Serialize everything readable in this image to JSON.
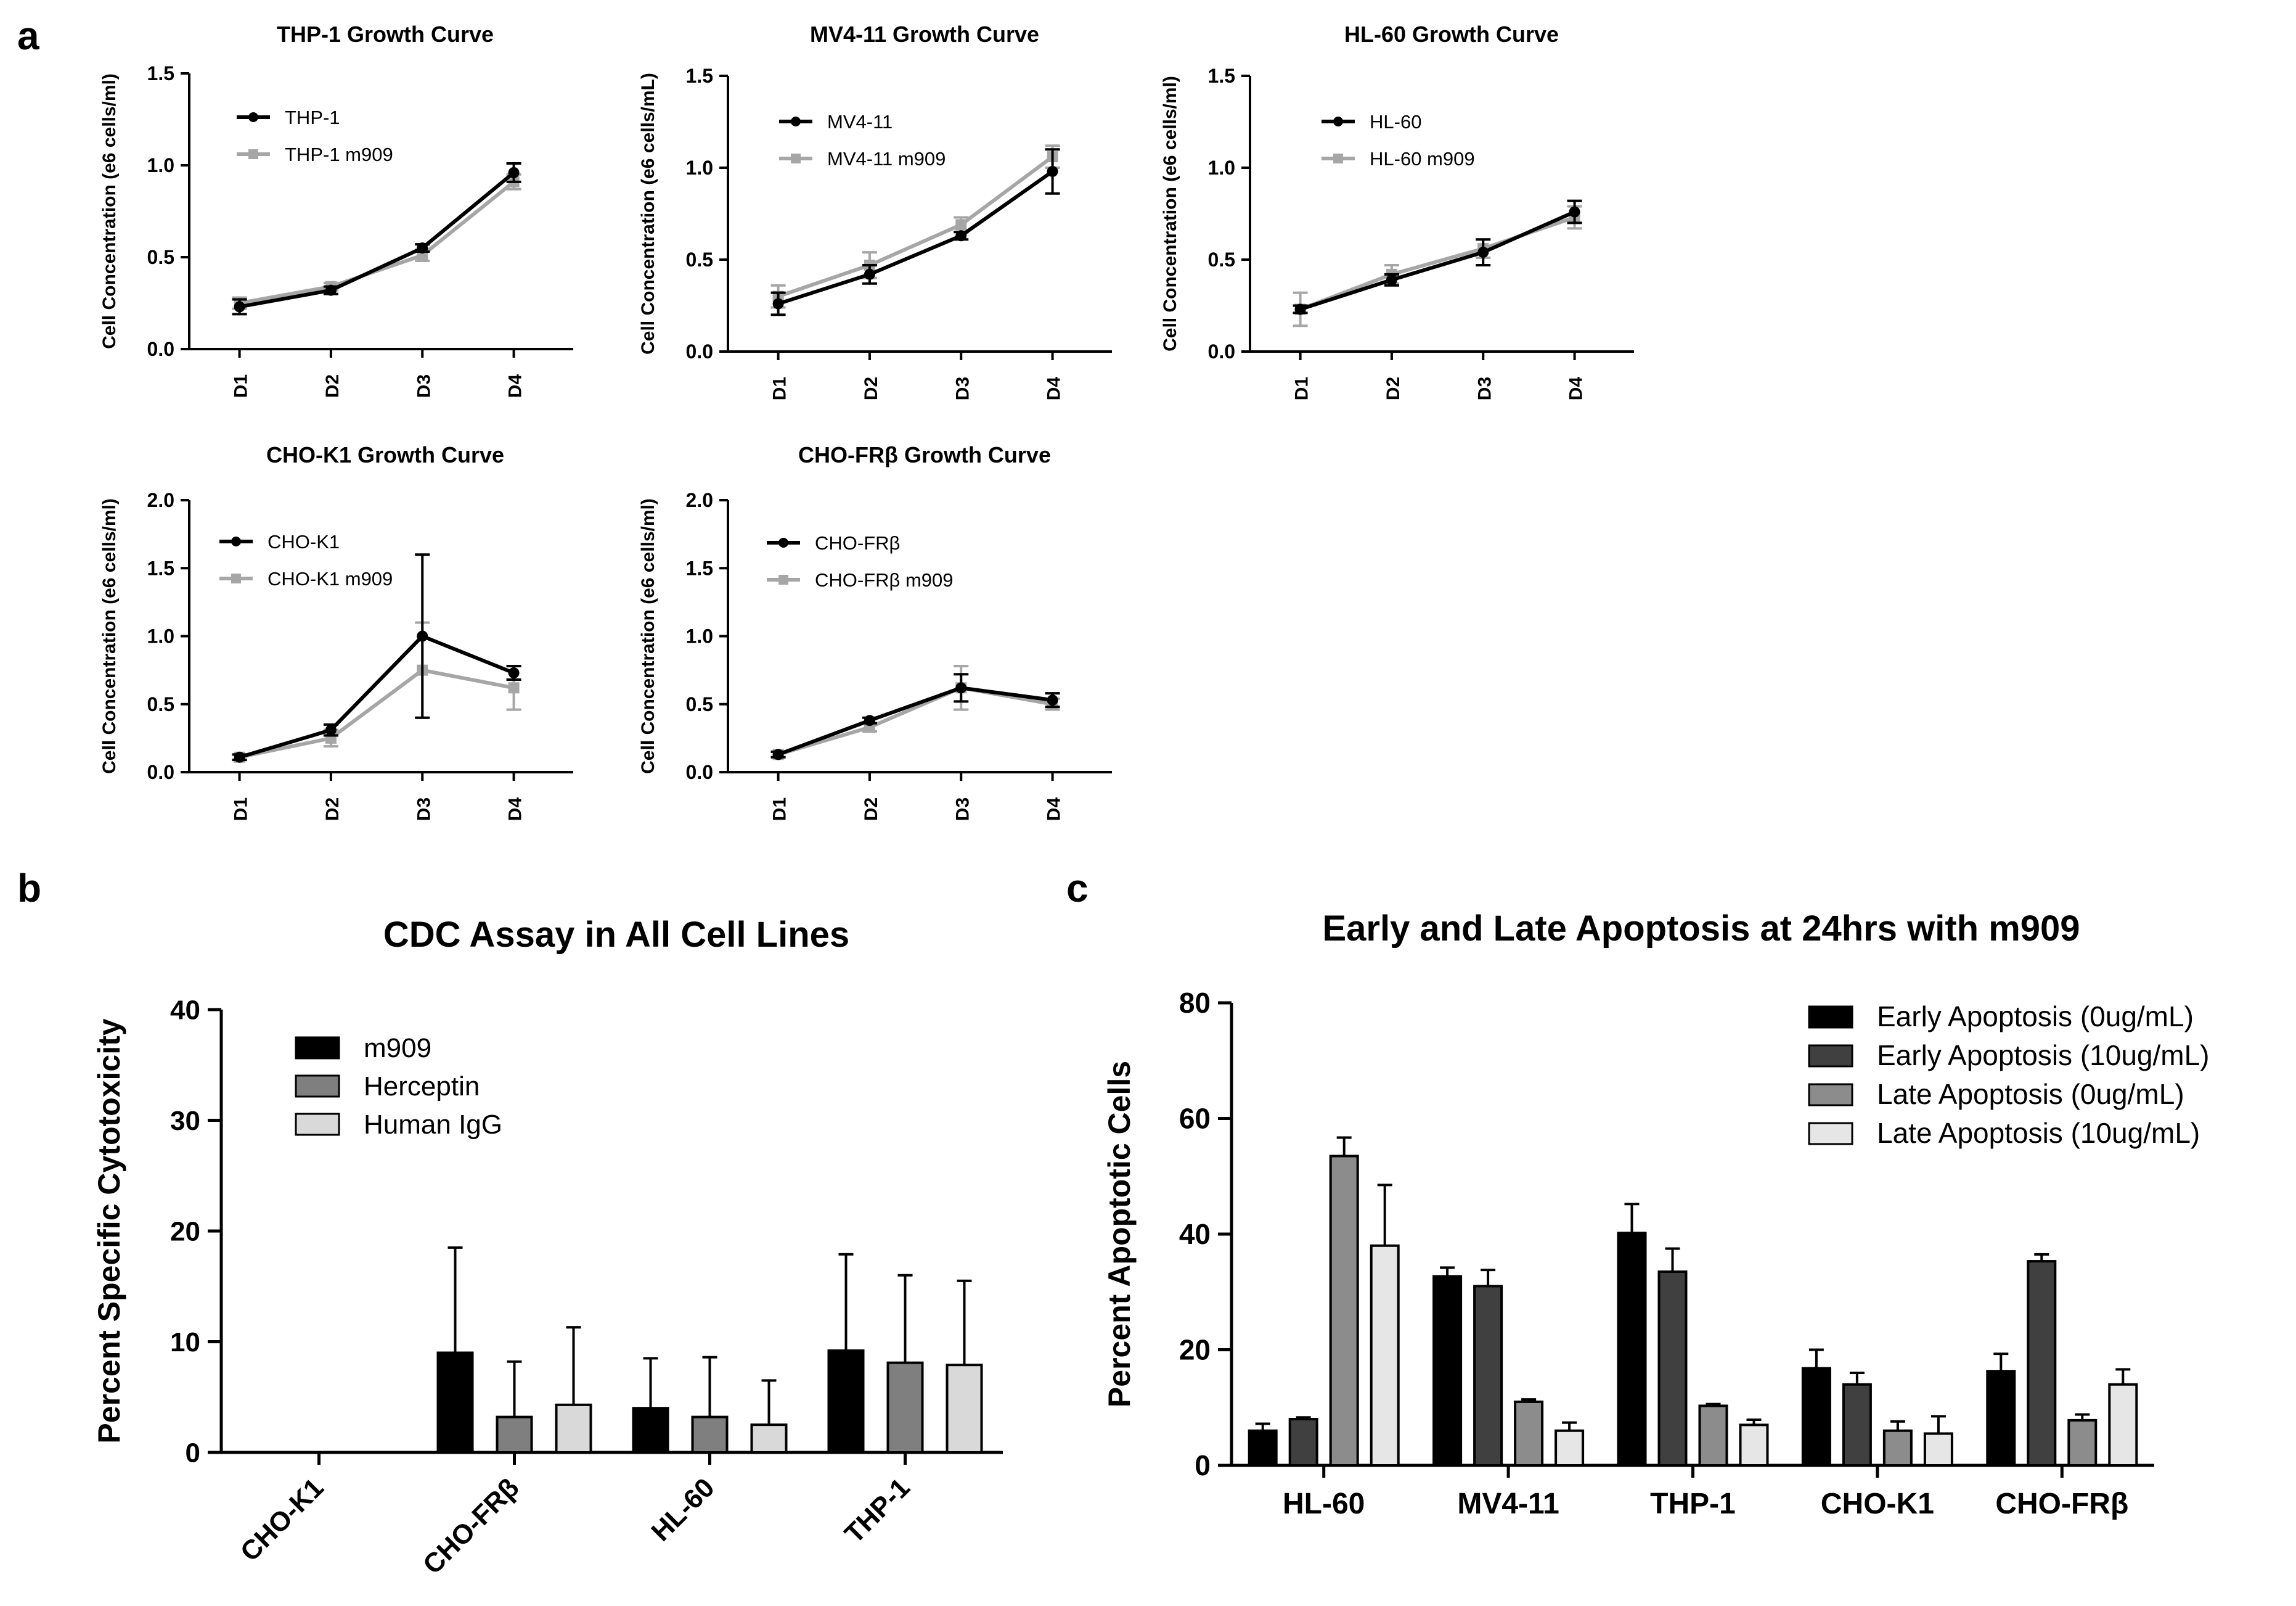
{
  "panel_labels": {
    "a": "a",
    "b": "b",
    "c": "c"
  },
  "colors": {
    "black_series": "#000000",
    "gray_series": "#a6a6a6"
  },
  "chart_data": [
    {
      "type": "line",
      "title": "THP-1 Growth Curve",
      "ylabel": "Cell Concentration (e6 cells/ml)",
      "categories": [
        "D1",
        "D2",
        "D3",
        "D4"
      ],
      "ylim": [
        0,
        1.5
      ],
      "yticks": [
        "0.0",
        "0.5",
        "1.0",
        "1.5"
      ],
      "legend_position": "top-left",
      "series": [
        {
          "name": "THP-1",
          "color": "#000000",
          "values": [
            0.23,
            0.32,
            0.55,
            0.96
          ],
          "errors": [
            0.04,
            0.02,
            0.02,
            0.05
          ]
        },
        {
          "name": "THP-1 m909",
          "color": "#a6a6a6",
          "values": [
            0.25,
            0.34,
            0.51,
            0.91
          ],
          "errors": [
            0.03,
            0.02,
            0.03,
            0.04
          ]
        }
      ]
    },
    {
      "type": "line",
      "title": "MV4-11 Growth Curve",
      "ylabel": "Cell Concentration (e6 cells/mL)",
      "categories": [
        "D1",
        "D2",
        "D3",
        "D4"
      ],
      "ylim": [
        0,
        1.5
      ],
      "yticks": [
        "0.0",
        "0.5",
        "1.0",
        "1.5"
      ],
      "legend_position": "top-left",
      "series": [
        {
          "name": "MV4-11",
          "color": "#000000",
          "values": [
            0.26,
            0.42,
            0.63,
            0.98
          ],
          "errors": [
            0.06,
            0.05,
            0.02,
            0.12
          ]
        },
        {
          "name": "MV4-11 m909",
          "color": "#a6a6a6",
          "values": [
            0.3,
            0.47,
            0.69,
            1.06
          ],
          "errors": [
            0.06,
            0.07,
            0.04,
            0.06
          ]
        }
      ]
    },
    {
      "type": "line",
      "title": "HL-60 Growth Curve",
      "ylabel": "Cell Concentration (e6 cells/ml)",
      "categories": [
        "D1",
        "D2",
        "D3",
        "D4"
      ],
      "ylim": [
        0,
        1.5
      ],
      "yticks": [
        "0.0",
        "0.5",
        "1.0",
        "1.5"
      ],
      "legend_position": "top-left",
      "series": [
        {
          "name": "HL-60",
          "color": "#000000",
          "values": [
            0.23,
            0.39,
            0.54,
            0.76
          ],
          "errors": [
            0.02,
            0.03,
            0.07,
            0.06
          ]
        },
        {
          "name": "HL-60 m909",
          "color": "#a6a6a6",
          "values": [
            0.23,
            0.42,
            0.56,
            0.73
          ],
          "errors": [
            0.09,
            0.05,
            0.05,
            0.06
          ]
        }
      ]
    },
    {
      "type": "line",
      "title": "CHO-K1 Growth Curve",
      "ylabel": "Cell Concentration (e6 cells/ml)",
      "categories": [
        "D1",
        "D2",
        "D3",
        "D4"
      ],
      "ylim": [
        0,
        2.0
      ],
      "yticks": [
        "0.0",
        "0.5",
        "1.0",
        "1.5",
        "2.0"
      ],
      "legend_position": "top-left",
      "series": [
        {
          "name": "CHO-K1",
          "color": "#000000",
          "values": [
            0.11,
            0.31,
            1.0,
            0.73
          ],
          "errors": [
            0.02,
            0.04,
            0.6,
            0.05
          ]
        },
        {
          "name": "CHO-K1 m909",
          "color": "#a6a6a6",
          "values": [
            0.11,
            0.25,
            0.75,
            0.62
          ],
          "errors": [
            0.02,
            0.06,
            0.35,
            0.16
          ]
        }
      ]
    },
    {
      "type": "line",
      "title": "CHO-FRβ Growth Curve",
      "ylabel": "Cell Concentration (e6 cells/ml)",
      "categories": [
        "D1",
        "D2",
        "D3",
        "D4"
      ],
      "ylim": [
        0,
        2.0
      ],
      "yticks": [
        "0.0",
        "0.5",
        "1.0",
        "1.5",
        "2.0"
      ],
      "legend_position": "top-left",
      "series": [
        {
          "name": "CHO-FRβ",
          "color": "#000000",
          "values": [
            0.13,
            0.38,
            0.62,
            0.53
          ],
          "errors": [
            0.02,
            0.02,
            0.1,
            0.05
          ]
        },
        {
          "name": "CHO-FRβ m909",
          "color": "#a6a6a6",
          "values": [
            0.13,
            0.33,
            0.62,
            0.5
          ],
          "errors": [
            0.02,
            0.03,
            0.16,
            0.04
          ]
        }
      ]
    },
    {
      "type": "bar",
      "title": "CDC Assay in All Cell Lines",
      "ylabel": "Percent Specific Cytotoxicity",
      "categories": [
        "CHO-K1",
        "CHO-FRβ",
        "HL-60",
        "THP-1"
      ],
      "ylim": [
        0,
        40
      ],
      "yticks": [
        "0",
        "10",
        "20",
        "30",
        "40"
      ],
      "legend_position": "top-left",
      "series": [
        {
          "name": "m909",
          "color": "#000000",
          "values": [
            0,
            9.0,
            4.0,
            9.2
          ],
          "errors": [
            0,
            9.5,
            4.5,
            8.7
          ]
        },
        {
          "name": "Herceptin",
          "color": "#7f7f7f",
          "values": [
            0,
            3.2,
            3.2,
            8.1
          ],
          "errors": [
            0,
            5.0,
            5.4,
            7.9
          ]
        },
        {
          "name": "Human IgG",
          "color": "#d9d9d9",
          "values": [
            0,
            4.3,
            2.5,
            7.9
          ],
          "errors": [
            0,
            7.0,
            4.0,
            7.6
          ]
        }
      ]
    },
    {
      "type": "bar",
      "title": "Early and Late Apoptosis at 24hrs with m909",
      "ylabel": "Percent Apoptotic Cells",
      "categories": [
        "HL-60",
        "MV4-11",
        "THP-1",
        "CHO-K1",
        "CHO-FRβ"
      ],
      "ylim": [
        0,
        80
      ],
      "yticks": [
        "0",
        "20",
        "40",
        "60",
        "80"
      ],
      "legend_position": "top-right",
      "series": [
        {
          "name": "Early Apoptosis (0ug/mL)",
          "color": "#000000",
          "values": [
            6.0,
            32.7,
            40.2,
            16.8,
            16.3
          ],
          "errors": [
            1.2,
            1.5,
            5.0,
            3.2,
            3.0
          ]
        },
        {
          "name": "Early Apoptosis (10ug/mL)",
          "color": "#404040",
          "values": [
            8.0,
            31.0,
            33.5,
            14.0,
            35.3
          ],
          "errors": [
            0.3,
            2.8,
            4.0,
            2.0,
            1.2
          ]
        },
        {
          "name": "Late Apoptosis (0ug/mL)",
          "color": "#8c8c8c",
          "values": [
            53.5,
            11.0,
            10.3,
            6.0,
            7.8
          ],
          "errors": [
            3.2,
            0.4,
            0.3,
            1.6,
            1.0
          ]
        },
        {
          "name": "Late Apoptosis (10ug/mL)",
          "color": "#e6e6e6",
          "values": [
            38.0,
            6.0,
            7.0,
            5.5,
            14.0
          ],
          "errors": [
            10.5,
            1.4,
            0.9,
            3.0,
            2.6
          ]
        }
      ]
    }
  ]
}
